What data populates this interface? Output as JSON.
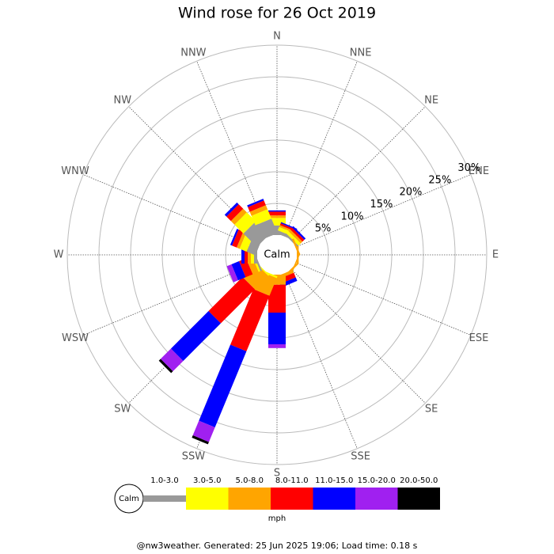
{
  "chart_data": {
    "type": "windrose",
    "title": "Wind rose for 26 Oct 2019",
    "directions": [
      "N",
      "NNE",
      "NE",
      "ENE",
      "E",
      "ESE",
      "SE",
      "SSE",
      "S",
      "SSW",
      "SW",
      "WSW",
      "W",
      "WNW",
      "NW",
      "NNW"
    ],
    "rlim": [
      0,
      30
    ],
    "rticks": [
      {
        "value": 5,
        "label": "5%"
      },
      {
        "value": 10,
        "label": "10%"
      },
      {
        "value": 15,
        "label": "15%"
      },
      {
        "value": 20,
        "label": "20%"
      },
      {
        "value": 25,
        "label": "25%"
      },
      {
        "value": 30,
        "label": "30%"
      }
    ],
    "calm_label": "Calm",
    "unit": "mph",
    "series": [
      {
        "name": "1.0-3.0",
        "color": "#999999",
        "values": [
          1.5,
          0.5,
          0.3,
          0,
          0,
          0,
          0,
          0,
          0,
          0,
          0,
          0.3,
          0.5,
          1.5,
          3,
          2.5
        ]
      },
      {
        "name": "3.0-5.0",
        "color": "#ffff00",
        "values": [
          1.2,
          0.6,
          0.5,
          0,
          0,
          0,
          0,
          0,
          0,
          0.3,
          0.2,
          0.3,
          0.5,
          1.2,
          2,
          1.6
        ]
      },
      {
        "name": "5.0-8.0",
        "color": "#ffa500",
        "values": [
          0.4,
          0.3,
          0.4,
          0.3,
          0.3,
          0.2,
          0.3,
          0.5,
          1.6,
          3,
          3,
          1,
          0.5,
          0.5,
          0.8,
          0.7
        ]
      },
      {
        "name": "8.0-11.0",
        "color": "#ff0000",
        "values": [
          0.6,
          0.3,
          0.4,
          0,
          0,
          0,
          0,
          0.8,
          4.4,
          9.5,
          7.6,
          1.2,
          0.5,
          0.8,
          1,
          0.8
        ]
      },
      {
        "name": "11.0-15.0",
        "color": "#0000ff",
        "values": [
          0.2,
          0.2,
          0.3,
          0,
          0,
          0,
          0,
          0.6,
          5,
          13,
          8.4,
          1.3,
          0.5,
          0.3,
          0.4,
          0.3
        ]
      },
      {
        "name": "15.0-20.0",
        "color": "#a020f0",
        "values": [
          0,
          0,
          0,
          0,
          0,
          0,
          0,
          0,
          0.6,
          2.5,
          2.3,
          0.8,
          0,
          0,
          0,
          0
        ]
      },
      {
        "name": "20.0-50.0",
        "color": "#000000",
        "values": [
          0,
          0,
          0,
          0,
          0,
          0,
          0,
          0,
          0,
          0.4,
          0.4,
          0,
          0,
          0,
          0,
          0
        ]
      }
    ],
    "footer": "@nw3weather. Generated: 25 Jun 2025 19:06; Load time: 0.18 s"
  }
}
